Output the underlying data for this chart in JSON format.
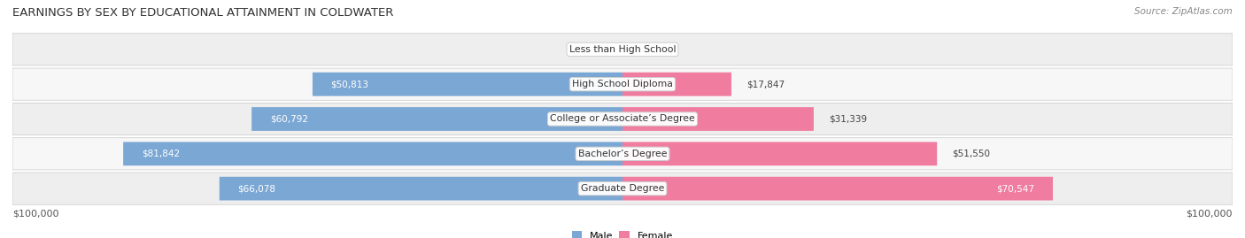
{
  "title": "EARNINGS BY SEX BY EDUCATIONAL ATTAINMENT IN COLDWATER",
  "source": "Source: ZipAtlas.com",
  "categories": [
    "Less than High School",
    "High School Diploma",
    "College or Associate’s Degree",
    "Bachelor’s Degree",
    "Graduate Degree"
  ],
  "male_values": [
    0,
    50813,
    60792,
    81842,
    66078
  ],
  "female_values": [
    0,
    17847,
    31339,
    51550,
    70547
  ],
  "max_value": 100000,
  "male_color": "#7ba7d4",
  "female_color": "#f07ca0",
  "male_label": "Male",
  "female_label": "Female",
  "row_bg_colors": [
    "#eeeeee",
    "#f7f7f7"
  ],
  "label_left": "$100,000",
  "label_right": "$100,000",
  "title_fontsize": 9.5,
  "source_fontsize": 7.5,
  "value_fontsize": 7.5,
  "category_fontsize": 7.8,
  "tick_fontsize": 8
}
